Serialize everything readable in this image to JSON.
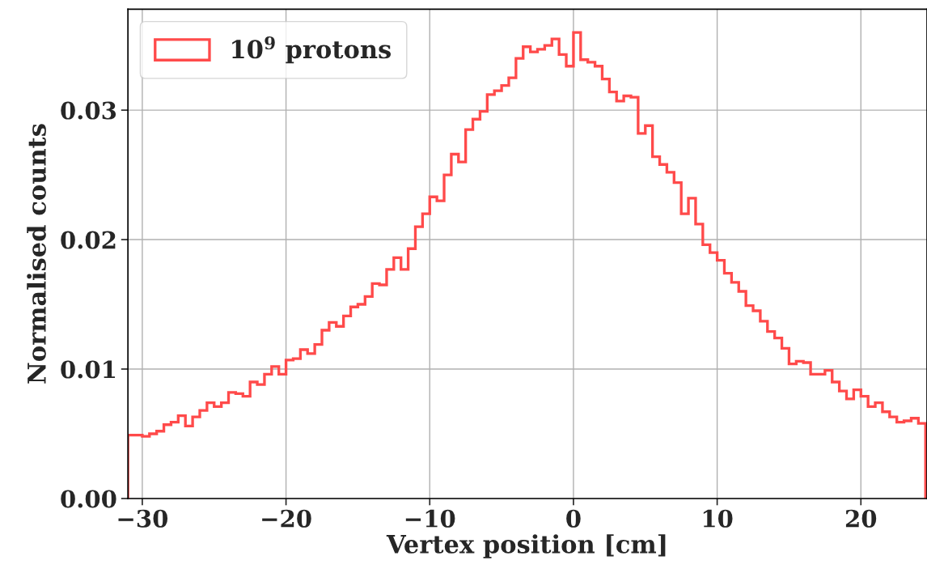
{
  "chart_data": {
    "type": "histogram",
    "xlabel": "Vertex position [cm]",
    "ylabel": "Normalised counts",
    "bins": [
      -31,
      -30.5,
      -30,
      -29.5,
      -29,
      -28.5,
      -28,
      -27.5,
      -27,
      -26.5,
      -26,
      -25.5,
      -25,
      -24.5,
      -24,
      -23.5,
      -23,
      -22.5,
      -22,
      -21.5,
      -21,
      -20.5,
      -20,
      -19.5,
      -19,
      -18.5,
      -18,
      -17.5,
      -17,
      -16.5,
      -16,
      -15.5,
      -15,
      -14.5,
      -14,
      -13.5,
      -13,
      -12.5,
      -12,
      -11.5,
      -11,
      -10.5,
      -10,
      -9.5,
      -9,
      -8.5,
      -8,
      -7.5,
      -7,
      -6.5,
      -6,
      -5.5,
      -5,
      -4.5,
      -4,
      -3.5,
      -3,
      -2.5,
      -2,
      -1.5,
      -1,
      -0.5,
      0,
      0.5,
      1,
      1.5,
      2,
      2.5,
      3,
      3.5,
      4,
      4.5,
      5,
      5.5,
      6,
      6.5,
      7,
      7.5,
      8,
      8.5,
      9,
      9.5,
      10,
      10.5,
      11,
      11.5,
      12,
      12.5,
      13,
      13.5,
      14,
      14.5,
      15,
      15.5,
      16,
      16.5,
      17,
      17.5,
      18,
      18.5,
      19,
      19.5,
      20,
      20.5,
      21,
      21.5,
      22,
      22.5,
      23,
      23.5,
      24,
      24.5
    ],
    "series": [
      {
        "name": "10$^{9}$ protons",
        "color": "#ff4a4a",
        "values": [
          0.0049,
          0.0049,
          0.0048,
          0.005,
          0.0052,
          0.0057,
          0.0059,
          0.0064,
          0.0056,
          0.0063,
          0.0068,
          0.0074,
          0.0071,
          0.0074,
          0.0082,
          0.0081,
          0.0079,
          0.009,
          0.0088,
          0.0096,
          0.0102,
          0.0096,
          0.0107,
          0.0108,
          0.0115,
          0.0112,
          0.0119,
          0.013,
          0.0136,
          0.0133,
          0.0141,
          0.0148,
          0.015,
          0.0156,
          0.0166,
          0.0165,
          0.0177,
          0.0186,
          0.0177,
          0.0193,
          0.021,
          0.022,
          0.0233,
          0.023,
          0.025,
          0.0266,
          0.026,
          0.0285,
          0.0293,
          0.0299,
          0.0312,
          0.0315,
          0.0319,
          0.0325,
          0.034,
          0.0349,
          0.0345,
          0.0347,
          0.035,
          0.0355,
          0.0343,
          0.0334,
          0.036,
          0.0339,
          0.0337,
          0.0334,
          0.0324,
          0.0314,
          0.0307,
          0.0311,
          0.031,
          0.0282,
          0.0288,
          0.0264,
          0.0258,
          0.0252,
          0.0244,
          0.022,
          0.0232,
          0.0212,
          0.0196,
          0.019,
          0.0184,
          0.0174,
          0.0167,
          0.016,
          0.0149,
          0.0145,
          0.0137,
          0.0129,
          0.0124,
          0.0116,
          0.0104,
          0.0106,
          0.0105,
          0.0096,
          0.0096,
          0.0099,
          0.009,
          0.0083,
          0.0077,
          0.0084,
          0.0079,
          0.0071,
          0.0074,
          0.0067,
          0.0063,
          0.0059,
          0.006,
          0.0062,
          0.0058
        ]
      }
    ],
    "xlim": [
      -31,
      24.6
    ],
    "ylim": [
      0,
      0.0378
    ],
    "xticks": [
      {
        "value": -30,
        "label": "−30"
      },
      {
        "value": -20,
        "label": "−20"
      },
      {
        "value": -10,
        "label": "−10"
      },
      0,
      10,
      20
    ],
    "yticks": [
      {
        "value": 0,
        "label": "0.00"
      },
      0.01,
      0.02,
      0.03
    ],
    "grid": true,
    "legend": "top left"
  }
}
